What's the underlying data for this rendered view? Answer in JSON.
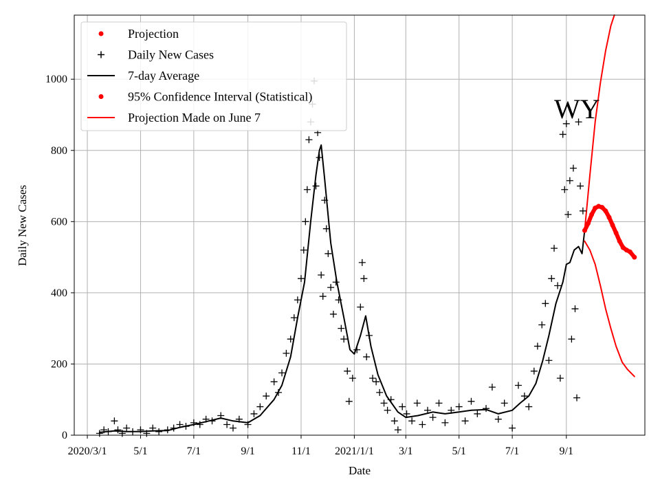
{
  "chart_data": {
    "type": "line",
    "xlabel": "Date",
    "ylabel": "Daily New Cases",
    "annotation": "WY",
    "x_range": [
      "2020-02-15",
      "2021-11-30"
    ],
    "ylim": [
      0,
      1180
    ],
    "grid": true,
    "legend_position": "top-left",
    "y_ticks": [
      0,
      200,
      400,
      600,
      800,
      1000
    ],
    "x_ticks": [
      {
        "date": "2020-03-01",
        "label": "2020/3/1"
      },
      {
        "date": "2020-05-01",
        "label": "5/1"
      },
      {
        "date": "2020-07-01",
        "label": "7/1"
      },
      {
        "date": "2020-09-01",
        "label": "9/1"
      },
      {
        "date": "2020-11-01",
        "label": "11/1"
      },
      {
        "date": "2021-01-01",
        "label": "2021/1/1"
      },
      {
        "date": "2021-03-01",
        "label": "3/1"
      },
      {
        "date": "2021-05-01",
        "label": "5/1"
      },
      {
        "date": "2021-07-01",
        "label": "7/1"
      },
      {
        "date": "2021-09-01",
        "label": "9/1"
      }
    ],
    "legend": [
      {
        "label": "Projection",
        "marker": "dot",
        "color": "#ff0000"
      },
      {
        "label": "Daily New Cases",
        "marker": "plus",
        "color": "#000000"
      },
      {
        "label": "7-day Average",
        "marker": "line",
        "color": "#000000"
      },
      {
        "label": "95% Confidence Interval (Statistical)",
        "marker": "dot",
        "color": "#ff0000"
      },
      {
        "label": "Projection Made on June 7",
        "marker": "line",
        "color": "#ff0000"
      }
    ],
    "series": [
      {
        "name": "7-day Average",
        "color": "#000000",
        "points": [
          [
            "2020-03-15",
            8
          ],
          [
            "2020-04-01",
            12
          ],
          [
            "2020-04-15",
            10
          ],
          [
            "2020-05-01",
            10
          ],
          [
            "2020-05-15",
            12
          ],
          [
            "2020-06-01",
            13
          ],
          [
            "2020-06-15",
            22
          ],
          [
            "2020-07-01",
            30
          ],
          [
            "2020-07-15",
            38
          ],
          [
            "2020-08-01",
            48
          ],
          [
            "2020-08-15",
            40
          ],
          [
            "2020-09-01",
            35
          ],
          [
            "2020-09-15",
            55
          ],
          [
            "2020-10-01",
            100
          ],
          [
            "2020-10-10",
            140
          ],
          [
            "2020-10-20",
            220
          ],
          [
            "2020-10-28",
            330
          ],
          [
            "2020-11-05",
            430
          ],
          [
            "2020-11-12",
            600
          ],
          [
            "2020-11-18",
            730
          ],
          [
            "2020-11-22",
            800
          ],
          [
            "2020-11-24",
            815
          ],
          [
            "2020-11-28",
            720
          ],
          [
            "2020-12-05",
            540
          ],
          [
            "2020-12-12",
            430
          ],
          [
            "2020-12-20",
            330
          ],
          [
            "2020-12-27",
            240
          ],
          [
            "2021-01-01",
            228
          ],
          [
            "2021-01-08",
            280
          ],
          [
            "2021-01-14",
            335
          ],
          [
            "2021-01-20",
            250
          ],
          [
            "2021-01-28",
            170
          ],
          [
            "2021-02-07",
            110
          ],
          [
            "2021-02-20",
            65
          ],
          [
            "2021-03-01",
            50
          ],
          [
            "2021-03-15",
            55
          ],
          [
            "2021-04-01",
            65
          ],
          [
            "2021-04-15",
            60
          ],
          [
            "2021-05-01",
            65
          ],
          [
            "2021-05-15",
            70
          ],
          [
            "2021-06-01",
            72
          ],
          [
            "2021-06-15",
            60
          ],
          [
            "2021-07-01",
            70
          ],
          [
            "2021-07-10",
            90
          ],
          [
            "2021-07-20",
            110
          ],
          [
            "2021-07-28",
            145
          ],
          [
            "2021-08-05",
            210
          ],
          [
            "2021-08-12",
            280
          ],
          [
            "2021-08-20",
            370
          ],
          [
            "2021-08-28",
            430
          ],
          [
            "2021-09-01",
            480
          ],
          [
            "2021-09-05",
            485
          ],
          [
            "2021-09-10",
            520
          ],
          [
            "2021-09-15",
            530
          ],
          [
            "2021-09-19",
            510
          ],
          [
            "2021-09-22",
            575
          ]
        ]
      },
      {
        "name": "Projection",
        "color": "#ff0000",
        "points": [
          [
            "2021-09-22",
            575
          ],
          [
            "2021-09-26",
            595
          ],
          [
            "2021-09-30",
            620
          ],
          [
            "2021-10-04",
            638
          ],
          [
            "2021-10-08",
            643
          ],
          [
            "2021-10-12",
            640
          ],
          [
            "2021-10-16",
            630
          ],
          [
            "2021-10-20",
            612
          ],
          [
            "2021-10-24",
            590
          ],
          [
            "2021-10-28",
            568
          ],
          [
            "2021-11-01",
            545
          ],
          [
            "2021-11-05",
            527
          ],
          [
            "2021-11-09",
            520
          ],
          [
            "2021-11-13",
            515
          ],
          [
            "2021-11-18",
            500
          ]
        ]
      },
      {
        "name": "95% CI upper",
        "color": "#ff0000",
        "points": [
          [
            "2021-09-22",
            575
          ],
          [
            "2021-09-28",
            730
          ],
          [
            "2021-10-04",
            880
          ],
          [
            "2021-10-10",
            990
          ],
          [
            "2021-10-16",
            1080
          ],
          [
            "2021-10-22",
            1150
          ],
          [
            "2021-10-26",
            1180
          ]
        ]
      },
      {
        "name": "95% CI lower",
        "color": "#ff0000",
        "points": [
          [
            "2021-09-22",
            545
          ],
          [
            "2021-09-28",
            520
          ],
          [
            "2021-10-04",
            480
          ],
          [
            "2021-10-10",
            420
          ],
          [
            "2021-10-16",
            355
          ],
          [
            "2021-10-22",
            300
          ],
          [
            "2021-10-28",
            250
          ],
          [
            "2021-11-04",
            205
          ],
          [
            "2021-11-10",
            185
          ],
          [
            "2021-11-18",
            165
          ]
        ]
      }
    ],
    "daily_new_cases": [
      [
        "2020-03-15",
        5
      ],
      [
        "2020-03-20",
        15
      ],
      [
        "2020-03-25",
        10
      ],
      [
        "2020-04-01",
        40
      ],
      [
        "2020-04-05",
        15
      ],
      [
        "2020-04-10",
        5
      ],
      [
        "2020-04-15",
        20
      ],
      [
        "2020-04-22",
        10
      ],
      [
        "2020-05-01",
        15
      ],
      [
        "2020-05-08",
        5
      ],
      [
        "2020-05-15",
        20
      ],
      [
        "2020-05-22",
        10
      ],
      [
        "2020-06-01",
        15
      ],
      [
        "2020-06-08",
        20
      ],
      [
        "2020-06-15",
        30
      ],
      [
        "2020-06-22",
        25
      ],
      [
        "2020-07-01",
        35
      ],
      [
        "2020-07-08",
        30
      ],
      [
        "2020-07-15",
        45
      ],
      [
        "2020-07-22",
        40
      ],
      [
        "2020-08-01",
        55
      ],
      [
        "2020-08-08",
        30
      ],
      [
        "2020-08-15",
        20
      ],
      [
        "2020-08-22",
        45
      ],
      [
        "2020-09-01",
        30
      ],
      [
        "2020-09-08",
        60
      ],
      [
        "2020-09-15",
        80
      ],
      [
        "2020-09-22",
        110
      ],
      [
        "2020-10-01",
        150
      ],
      [
        "2020-10-06",
        120
      ],
      [
        "2020-10-10",
        175
      ],
      [
        "2020-10-15",
        230
      ],
      [
        "2020-10-20",
        270
      ],
      [
        "2020-10-24",
        330
      ],
      [
        "2020-10-28",
        380
      ],
      [
        "2020-11-01",
        440
      ],
      [
        "2020-11-04",
        520
      ],
      [
        "2020-11-06",
        600
      ],
      [
        "2020-11-08",
        690
      ],
      [
        "2020-11-10",
        830
      ],
      [
        "2020-11-12",
        880
      ],
      [
        "2020-11-14",
        930
      ],
      [
        "2020-11-16",
        995
      ],
      [
        "2020-11-18",
        700
      ],
      [
        "2020-11-20",
        850
      ],
      [
        "2020-11-22",
        780
      ],
      [
        "2020-11-24",
        450
      ],
      [
        "2020-11-26",
        390
      ],
      [
        "2020-11-28",
        660
      ],
      [
        "2020-11-30",
        580
      ],
      [
        "2020-12-02",
        510
      ],
      [
        "2020-12-05",
        415
      ],
      [
        "2020-12-08",
        340
      ],
      [
        "2020-12-11",
        430
      ],
      [
        "2020-12-14",
        380
      ],
      [
        "2020-12-17",
        300
      ],
      [
        "2020-12-20",
        270
      ],
      [
        "2020-12-24",
        180
      ],
      [
        "2020-12-26",
        95
      ],
      [
        "2020-12-30",
        160
      ],
      [
        "2021-01-04",
        240
      ],
      [
        "2021-01-08",
        360
      ],
      [
        "2021-01-10",
        485
      ],
      [
        "2021-01-12",
        440
      ],
      [
        "2021-01-15",
        220
      ],
      [
        "2021-01-18",
        280
      ],
      [
        "2021-01-22",
        160
      ],
      [
        "2021-01-26",
        150
      ],
      [
        "2021-01-30",
        120
      ],
      [
        "2021-02-04",
        90
      ],
      [
        "2021-02-08",
        70
      ],
      [
        "2021-02-12",
        100
      ],
      [
        "2021-02-16",
        40
      ],
      [
        "2021-02-20",
        15
      ],
      [
        "2021-02-25",
        80
      ],
      [
        "2021-03-02",
        60
      ],
      [
        "2021-03-08",
        40
      ],
      [
        "2021-03-14",
        90
      ],
      [
        "2021-03-20",
        30
      ],
      [
        "2021-03-26",
        70
      ],
      [
        "2021-04-01",
        50
      ],
      [
        "2021-04-08",
        90
      ],
      [
        "2021-04-15",
        35
      ],
      [
        "2021-04-22",
        70
      ],
      [
        "2021-05-01",
        80
      ],
      [
        "2021-05-08",
        40
      ],
      [
        "2021-05-15",
        95
      ],
      [
        "2021-05-22",
        60
      ],
      [
        "2021-06-01",
        75
      ],
      [
        "2021-06-08",
        135
      ],
      [
        "2021-06-15",
        45
      ],
      [
        "2021-06-22",
        90
      ],
      [
        "2021-07-01",
        20
      ],
      [
        "2021-07-08",
        140
      ],
      [
        "2021-07-15",
        110
      ],
      [
        "2021-07-20",
        80
      ],
      [
        "2021-07-26",
        180
      ],
      [
        "2021-07-30",
        250
      ],
      [
        "2021-08-04",
        310
      ],
      [
        "2021-08-08",
        370
      ],
      [
        "2021-08-12",
        210
      ],
      [
        "2021-08-15",
        440
      ],
      [
        "2021-08-18",
        525
      ],
      [
        "2021-08-22",
        420
      ],
      [
        "2021-08-25",
        160
      ],
      [
        "2021-08-28",
        845
      ],
      [
        "2021-08-30",
        690
      ],
      [
        "2021-09-01",
        875
      ],
      [
        "2021-09-03",
        620
      ],
      [
        "2021-09-05",
        715
      ],
      [
        "2021-09-07",
        270
      ],
      [
        "2021-09-09",
        750
      ],
      [
        "2021-09-11",
        355
      ],
      [
        "2021-09-13",
        105
      ],
      [
        "2021-09-15",
        880
      ],
      [
        "2021-09-17",
        700
      ],
      [
        "2021-09-20",
        630
      ]
    ]
  }
}
